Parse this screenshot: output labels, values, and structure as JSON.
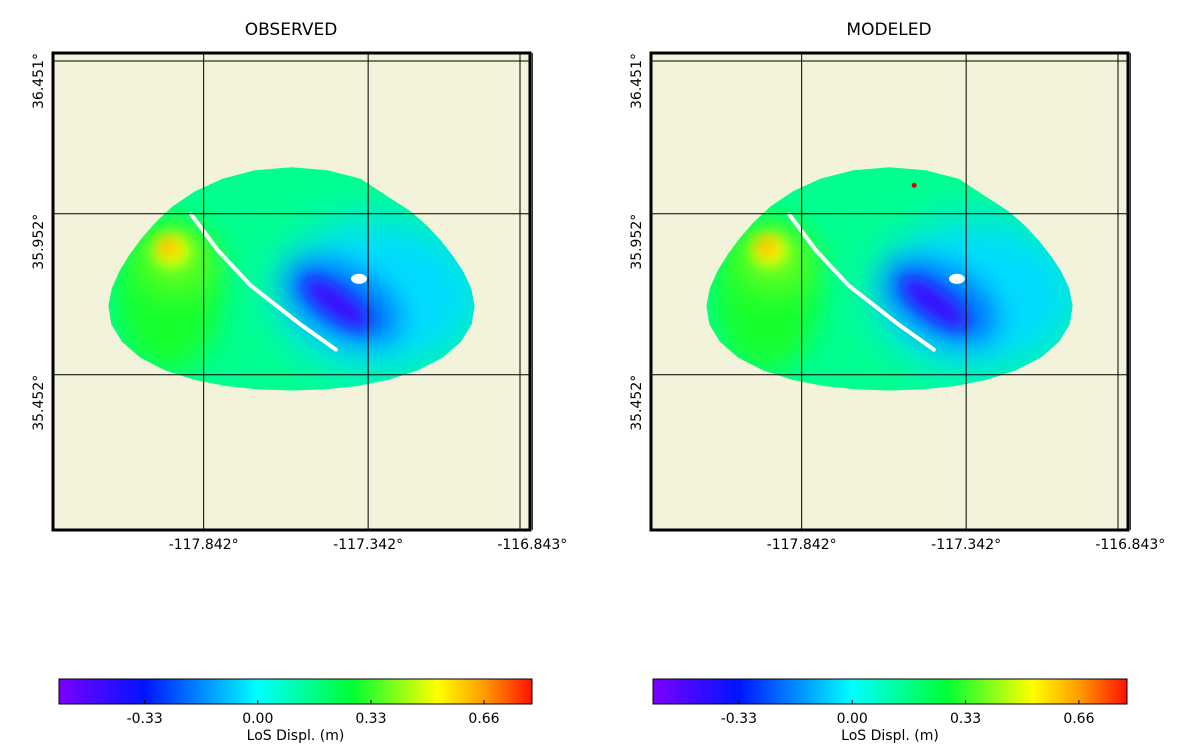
{
  "chart_data": [
    {
      "type": "heatmap",
      "title": "OBSERVED",
      "x_ticks": [
        "-117.842°",
        "-117.342°",
        "-116.843°"
      ],
      "y_ticks": [
        "36.451°",
        "35.952°",
        "35.452°"
      ],
      "x_tick_values": [
        -117.842,
        -117.342,
        -116.843
      ],
      "y_tick_values": [
        36.451,
        35.952,
        35.452
      ],
      "xlim": [
        -118.3,
        -116.85
      ],
      "ylim": [
        34.97,
        36.451
      ],
      "background_color": "#f3f2da",
      "grid": true,
      "extent_lon": [
        -118.15,
        -117.0
      ],
      "extent_lat": [
        35.4,
        36.04
      ],
      "colorbar": {
        "label": "LoS Displ. (m)",
        "ticks": [
          "-0.33",
          "0.00",
          "0.33",
          "0.66"
        ],
        "tick_values": [
          -0.33,
          0.0,
          0.33,
          0.66
        ],
        "range": [
          -0.58,
          0.8
        ]
      },
      "features": [
        {
          "kind": "uplift-lobe",
          "value": 0.66,
          "lon": -117.95,
          "lat": 35.85
        },
        {
          "kind": "subsidence-lobe",
          "value": -0.45,
          "lon": -117.42,
          "lat": 35.68
        },
        {
          "kind": "background",
          "value": 0.15
        }
      ]
    },
    {
      "type": "heatmap",
      "title": "MODELED",
      "x_ticks": [
        "-117.842°",
        "-117.342°",
        "-116.843°"
      ],
      "y_ticks": [
        "36.451°",
        "35.952°",
        "35.452°"
      ],
      "x_tick_values": [
        -117.842,
        -117.342,
        -116.843
      ],
      "y_tick_values": [
        36.451,
        35.952,
        35.452
      ],
      "xlim": [
        -118.3,
        -116.85
      ],
      "ylim": [
        34.97,
        36.451
      ],
      "background_color": "#f3f2da",
      "grid": true,
      "extent_lon": [
        -118.15,
        -117.0
      ],
      "extent_lat": [
        35.4,
        36.04
      ],
      "marker": {
        "lon": -117.5,
        "lat": 36.04,
        "color": "#dd0000"
      },
      "colorbar": {
        "label": "LoS Displ. (m)",
        "ticks": [
          "-0.33",
          "0.00",
          "0.33",
          "0.66"
        ],
        "tick_values": [
          -0.33,
          0.0,
          0.33,
          0.66
        ],
        "range": [
          -0.58,
          0.8
        ]
      },
      "features": [
        {
          "kind": "uplift-lobe",
          "value": 0.66,
          "lon": -117.95,
          "lat": 35.85
        },
        {
          "kind": "subsidence-lobe",
          "value": -0.45,
          "lon": -117.42,
          "lat": 35.68
        },
        {
          "kind": "background",
          "value": 0.15
        }
      ]
    }
  ]
}
